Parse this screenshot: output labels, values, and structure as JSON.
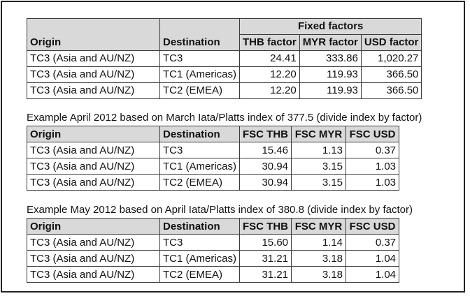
{
  "table1": {
    "group_header": "Fixed factors",
    "headers": [
      "Origin",
      "Destination",
      "THB factor",
      "MYR factor",
      "USD factor"
    ],
    "rows": [
      [
        "TC3 (Asia and AU/NZ)",
        "TC3",
        "24.41",
        "333.86",
        "1,020.27"
      ],
      [
        "TC3 (Asia and AU/NZ)",
        "TC1 (Americas)",
        "12.20",
        "119.93",
        "366.50"
      ],
      [
        "TC3 (Asia and AU/NZ)",
        "TC2 (EMEA)",
        "12.20",
        "119.93",
        "366.50"
      ]
    ]
  },
  "example_april": {
    "caption": "Example April 2012 based on March Iata/Platts index of 377.5  (divide index by factor)",
    "headers": [
      "Origin",
      "Destination",
      "FSC THB",
      "FSC MYR",
      "FSC USD"
    ],
    "rows": [
      [
        "TC3 (Asia and AU/NZ)",
        "TC3",
        "15.46",
        "1.13",
        "0.37"
      ],
      [
        "TC3 (Asia and AU/NZ)",
        "TC1 (Americas)",
        "30.94",
        "3.15",
        "1.03"
      ],
      [
        "TC3 (Asia and AU/NZ)",
        "TC2 (EMEA)",
        "30.94",
        "3.15",
        "1.03"
      ]
    ]
  },
  "example_may": {
    "caption": "Example May 2012 based on April Iata/Platts index of 380.8 (divide index by factor)",
    "headers": [
      "Origin",
      "Destination",
      "FSC THB",
      "FSC MYR",
      "FSC USD"
    ],
    "rows": [
      [
        "TC3 (Asia and AU/NZ)",
        "TC3",
        "15.60",
        "1.14",
        "0.37"
      ],
      [
        "TC3 (Asia and AU/NZ)",
        "TC1 (Americas)",
        "31.21",
        "3.18",
        "1.04"
      ],
      [
        "TC3 (Asia and AU/NZ)",
        "TC2 (EMEA)",
        "31.21",
        "3.18",
        "1.04"
      ]
    ]
  }
}
